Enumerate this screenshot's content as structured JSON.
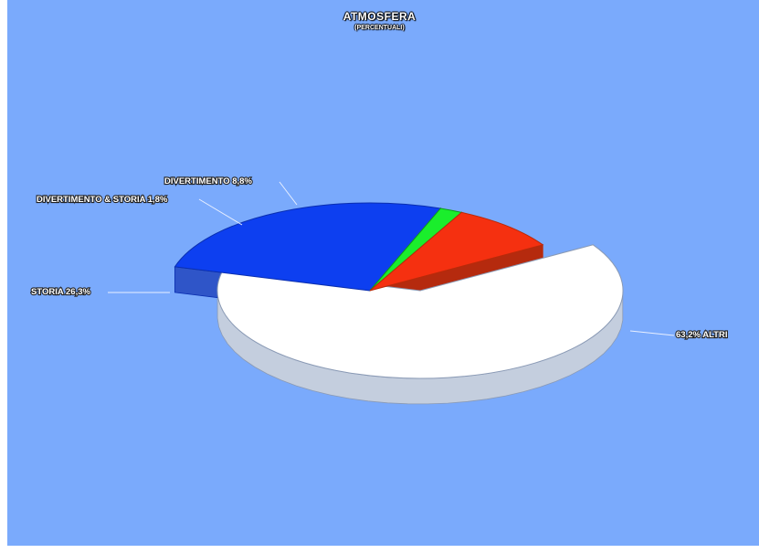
{
  "chart_data": {
    "type": "pie",
    "title": "ATMOSFERA",
    "subtitle": "(PERCENTUALI)",
    "slices": [
      {
        "label": "ALTRI",
        "value": 63.2,
        "display": "63,2%  ALTRI",
        "color": "#ffffff"
      },
      {
        "label": "STORIA",
        "value": 26.3,
        "display": "STORIA  26,3%",
        "color": "#0d3ff0"
      },
      {
        "label": "DIVERTIMENTO & STORIA",
        "value": 1.8,
        "display": "DIVERTIMENTO & STORIA  1,8%",
        "color": "#1aee2c"
      },
      {
        "label": "DIVERTIMENTO",
        "value": 8.8,
        "display": "DIVERTIMENTO  8,8%",
        "color": "#f53010"
      }
    ],
    "background": "#7aaafc",
    "style": "3d-exploded"
  }
}
